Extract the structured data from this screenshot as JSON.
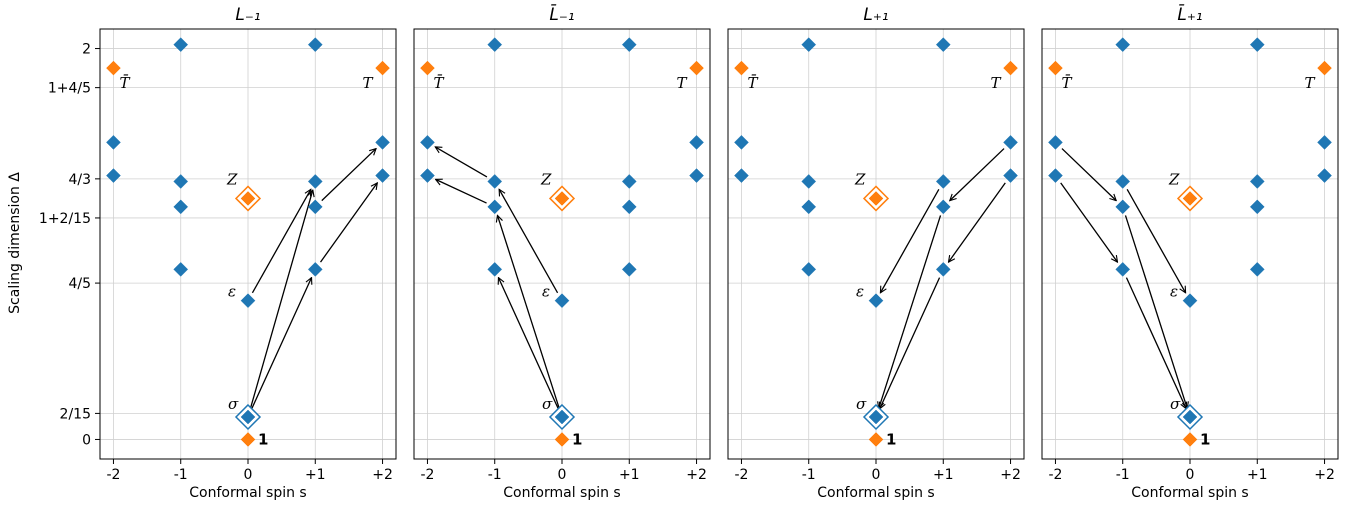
{
  "chart_data": {
    "type": "scatter",
    "ylabel": "Scaling dimension Δ",
    "xlabel": "Conformal spin s",
    "x_ticks": [
      {
        "v": -2,
        "label": "-2"
      },
      {
        "v": -1,
        "label": "-1"
      },
      {
        "v": 0,
        "label": "0"
      },
      {
        "v": 1,
        "label": "+1"
      },
      {
        "v": 2,
        "label": "+2"
      }
    ],
    "y_ticks": [
      {
        "v": 0,
        "label": "0"
      },
      {
        "v": 0.1333,
        "label": "2/15"
      },
      {
        "v": 0.8,
        "label": "4/5"
      },
      {
        "v": 1.1333,
        "label": "1+2/15"
      },
      {
        "v": 1.3333,
        "label": "4/3"
      },
      {
        "v": 1.8,
        "label": "1+4/5"
      },
      {
        "v": 2,
        "label": "2"
      }
    ],
    "xlim": [
      -2.2,
      2.2
    ],
    "ylim": [
      -0.1,
      2.1
    ],
    "grid": true,
    "colors": {
      "blue": "#1f77b4",
      "orange": "#ff7f0e"
    },
    "points": [
      {
        "s": -2,
        "d": 1.9,
        "c": "orange"
      },
      {
        "s": 2,
        "d": 1.9,
        "c": "orange"
      },
      {
        "s": 0,
        "d": 0,
        "c": "orange"
      },
      {
        "s": 0,
        "d": 1.233,
        "c": "orange",
        "ring": true
      },
      {
        "s": -1,
        "d": 2.02,
        "c": "blue"
      },
      {
        "s": 1,
        "d": 2.02,
        "c": "blue"
      },
      {
        "s": -2,
        "d": 1.52,
        "c": "blue"
      },
      {
        "s": 2,
        "d": 1.52,
        "c": "blue"
      },
      {
        "s": -2,
        "d": 1.35,
        "c": "blue"
      },
      {
        "s": 2,
        "d": 1.35,
        "c": "blue"
      },
      {
        "s": -1,
        "d": 1.32,
        "c": "blue"
      },
      {
        "s": 1,
        "d": 1.32,
        "c": "blue"
      },
      {
        "s": -1,
        "d": 1.19,
        "c": "blue"
      },
      {
        "s": 1,
        "d": 1.19,
        "c": "blue"
      },
      {
        "s": -1,
        "d": 0.87,
        "c": "blue"
      },
      {
        "s": 1,
        "d": 0.87,
        "c": "blue"
      },
      {
        "s": 0,
        "d": 0.71,
        "c": "blue"
      },
      {
        "s": 0,
        "d": 0.115,
        "c": "blue",
        "ring": true
      }
    ],
    "labels": [
      {
        "text": "T̄",
        "s": -2,
        "d": 1.9,
        "dx": 6,
        "dy": 20
      },
      {
        "text": "T",
        "s": 2,
        "d": 1.9,
        "dx": -20,
        "dy": 20
      },
      {
        "text": "Z",
        "s": 0,
        "d": 1.233,
        "dx": -21,
        "dy": -14
      },
      {
        "text": "ε",
        "s": 0,
        "d": 0.71,
        "dx": -20,
        "dy": -4
      },
      {
        "text": "σ",
        "s": 0,
        "d": 0.115,
        "dx": -20,
        "dy": -8
      },
      {
        "text": "1",
        "s": 0,
        "d": 0,
        "dx": 10,
        "dy": 5,
        "bold": true
      }
    ],
    "panels": [
      {
        "title": "L₋₁",
        "arrows": [
          [
            0,
            0.115,
            1,
            1.32
          ],
          [
            0,
            0.115,
            1,
            0.87
          ],
          [
            0,
            0.71,
            1,
            1.32
          ],
          [
            1,
            1.19,
            2,
            1.52
          ],
          [
            1,
            0.87,
            2,
            1.35
          ]
        ]
      },
      {
        "title": "L̄₋₁",
        "arrows": [
          [
            0,
            0.115,
            -1,
            1.19
          ],
          [
            0,
            0.115,
            -1,
            0.87
          ],
          [
            0,
            0.71,
            -1,
            1.32
          ],
          [
            -1,
            1.32,
            -2,
            1.52
          ],
          [
            -1,
            1.19,
            -2,
            1.35
          ]
        ]
      },
      {
        "title": "L₊₁",
        "arrows": [
          [
            1,
            1.19,
            0,
            0.115
          ],
          [
            1,
            0.87,
            0,
            0.115
          ],
          [
            1,
            1.32,
            0,
            0.71
          ],
          [
            2,
            1.52,
            1,
            1.19
          ],
          [
            2,
            1.35,
            1,
            0.87
          ]
        ]
      },
      {
        "title": "L̄₊₁",
        "arrows": [
          [
            -1,
            1.19,
            0,
            0.115
          ],
          [
            -1,
            0.87,
            0,
            0.115
          ],
          [
            -1,
            1.32,
            0,
            0.71
          ],
          [
            -2,
            1.52,
            -1,
            1.19
          ],
          [
            -2,
            1.35,
            -1,
            0.87
          ]
        ]
      }
    ]
  }
}
